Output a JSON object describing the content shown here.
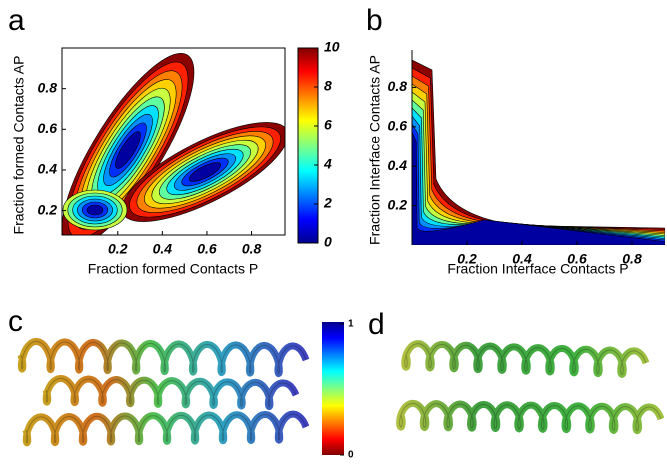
{
  "panels": [
    {
      "label": "a",
      "xlabel": "Fraction formed Contacts P",
      "ylabel": "Fraction formed Contacts AP",
      "xlim": [
        -0.05,
        0.95
      ],
      "ylim": [
        0.08,
        1.0
      ],
      "xticks": [
        0.2,
        0.4,
        0.6,
        0.8
      ],
      "yticks": [
        0.2,
        0.4,
        0.6,
        0.8
      ],
      "colorbar": {
        "lim": [
          0,
          10
        ],
        "ticks": [
          0,
          2,
          4,
          6,
          8,
          10
        ]
      }
    },
    {
      "label": "b",
      "xlabel": "Fraction Interface Contacts P",
      "ylabel": "Fraction Interface Contacts AP",
      "xlim": [
        0,
        0.92
      ],
      "ylim": [
        0.0,
        0.99
      ],
      "xticks": [
        0.2,
        0.4,
        0.6,
        0.8
      ],
      "yticks": [
        0.2,
        0.4,
        0.6,
        0.8
      ]
    },
    {
      "label": "c",
      "colorbar": {
        "lim": [
          0,
          1
        ],
        "ticks": [
          0,
          1
        ]
      }
    },
    {
      "label": "d"
    }
  ]
}
